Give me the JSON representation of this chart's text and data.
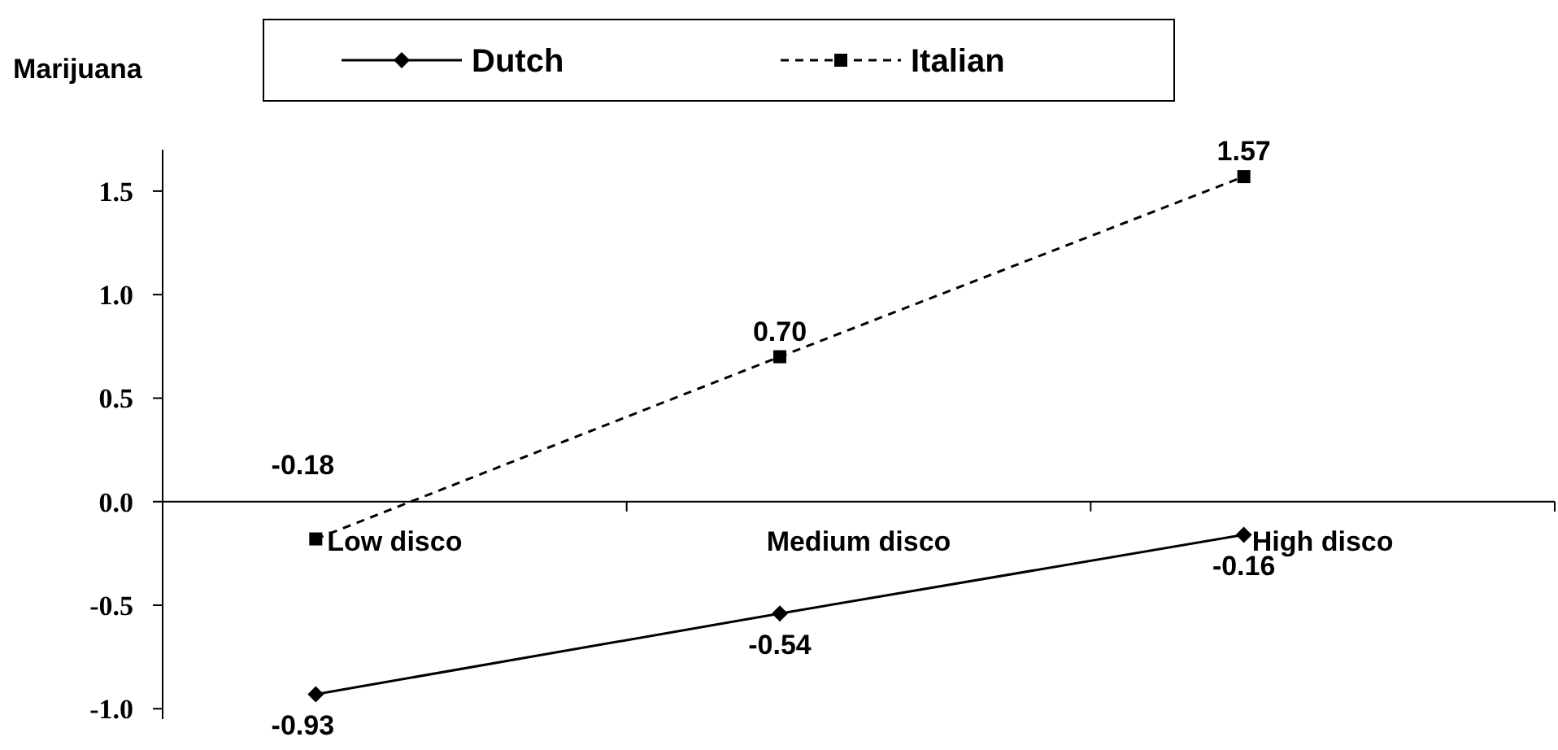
{
  "chart_data": {
    "type": "line",
    "title": "Marijuana",
    "categories": [
      "Low disco",
      "Medium disco",
      "High disco"
    ],
    "series": [
      {
        "name": "Dutch",
        "color": "#000000",
        "values": [
          -0.93,
          -0.54,
          -0.16
        ],
        "value_labels": [
          "-0.93",
          "-0.54",
          "-0.16"
        ],
        "marker": "diamond",
        "line_style": "solid"
      },
      {
        "name": "Italian",
        "color": "#000000",
        "values": [
          -0.18,
          0.7,
          1.57
        ],
        "value_labels": [
          "-0.18",
          "0.70",
          "1.57"
        ],
        "marker": "square",
        "line_style": "dashed"
      }
    ],
    "ylim": [
      -1.05,
      1.7
    ],
    "yticks": [
      {
        "value": -1,
        "label": "-1.0"
      },
      {
        "value": -0.5,
        "label": "-0.5"
      },
      {
        "value": 0,
        "label": "0.0"
      },
      {
        "value": 0.5,
        "label": "0.5"
      },
      {
        "value": 1,
        "label": "1.0"
      },
      {
        "value": 1.5,
        "label": "1.5"
      }
    ],
    "legend": "top",
    "grid": false
  }
}
